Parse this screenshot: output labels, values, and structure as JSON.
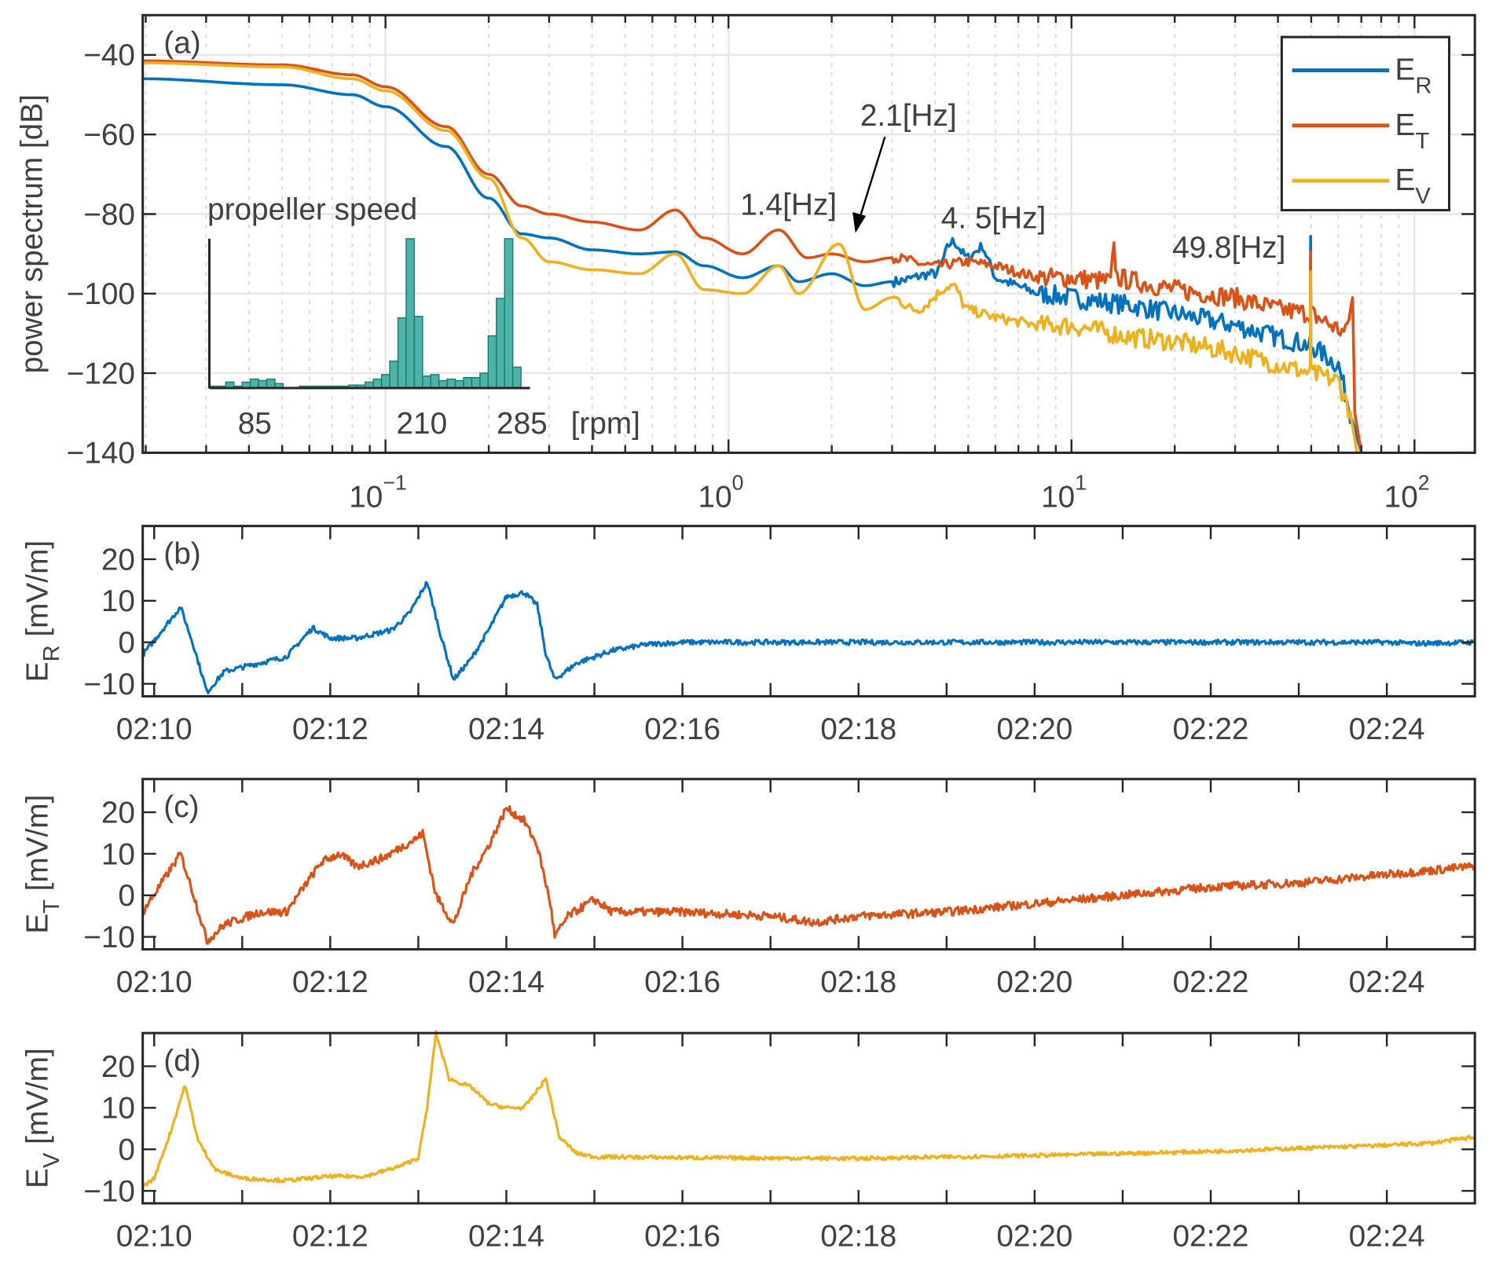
{
  "chart_data": [
    {
      "type": "line",
      "panel": "(a)",
      "xscale": "log",
      "xlim": [
        0.0196,
        150
      ],
      "ylim": [
        -140,
        -30
      ],
      "ylabel": "power spectrum [dB]",
      "grid": true,
      "xticks": [
        {
          "value": 0.1,
          "base": "10",
          "exp": "−1"
        },
        {
          "value": 1,
          "base": "10",
          "exp": "0"
        },
        {
          "value": 10,
          "base": "10",
          "exp": "1"
        },
        {
          "value": 100,
          "base": "10",
          "exp": "2"
        }
      ],
      "yticks": [
        {
          "value": -40,
          "label": "−40"
        },
        {
          "value": -60,
          "label": "−60"
        },
        {
          "value": -80,
          "label": "−80"
        },
        {
          "value": -100,
          "label": "−100"
        },
        {
          "value": -120,
          "label": "−120"
        },
        {
          "value": -140,
          "label": "−140"
        }
      ],
      "legend": {
        "placement": "top-right",
        "entries": [
          {
            "main": "E",
            "sub": "R",
            "color": "#0072BD"
          },
          {
            "main": "E",
            "sub": "T",
            "color": "#D95319"
          },
          {
            "main": "E",
            "sub": "V",
            "color": "#EDB120"
          }
        ]
      },
      "series": [
        {
          "name": "E_R",
          "color": "#0072BD",
          "points": [
            [
              0.0196,
              -46
            ],
            [
              0.05,
              -47.5
            ],
            [
              0.08,
              -50
            ],
            [
              0.1,
              -53
            ],
            [
              0.15,
              -63
            ],
            [
              0.2,
              -76
            ],
            [
              0.25,
              -85
            ],
            [
              0.3,
              -86
            ],
            [
              0.4,
              -89
            ],
            [
              0.55,
              -90
            ],
            [
              0.7,
              -89.5
            ],
            [
              0.85,
              -93
            ],
            [
              1.1,
              -96
            ],
            [
              1.4,
              -93
            ],
            [
              1.6,
              -97
            ],
            [
              2,
              -95
            ],
            [
              2.5,
              -98
            ],
            [
              3,
              -97
            ],
            [
              4,
              -95
            ],
            [
              4.5,
              -87
            ],
            [
              5,
              -91
            ],
            [
              5.5,
              -88
            ],
            [
              6,
              -96
            ],
            [
              8,
              -100
            ],
            [
              10,
              -101
            ],
            [
              15,
              -103
            ],
            [
              20,
              -105
            ],
            [
              30,
              -108
            ],
            [
              40,
              -111
            ],
            [
              49.7,
              -113
            ],
            [
              49.8,
              -86.5
            ],
            [
              49.9,
              -113
            ],
            [
              60,
              -118
            ],
            [
              65,
              -130
            ],
            [
              70,
              -140
            ]
          ]
        },
        {
          "name": "E_T",
          "color": "#D95319",
          "points": [
            [
              0.0196,
              -41.5
            ],
            [
              0.05,
              -42.5
            ],
            [
              0.08,
              -45
            ],
            [
              0.1,
              -48
            ],
            [
              0.15,
              -58
            ],
            [
              0.2,
              -70
            ],
            [
              0.25,
              -78
            ],
            [
              0.3,
              -80
            ],
            [
              0.4,
              -82
            ],
            [
              0.55,
              -84
            ],
            [
              0.7,
              -79
            ],
            [
              0.85,
              -86
            ],
            [
              1.1,
              -90
            ],
            [
              1.4,
              -84
            ],
            [
              1.7,
              -91
            ],
            [
              2,
              -90
            ],
            [
              2.5,
              -92
            ],
            [
              3,
              -91
            ],
            [
              4,
              -93
            ],
            [
              5,
              -92
            ],
            [
              6,
              -93
            ],
            [
              8,
              -96
            ],
            [
              10,
              -96
            ],
            [
              13,
              -97
            ],
            [
              13.3,
              -89
            ],
            [
              13.6,
              -96
            ],
            [
              20,
              -99
            ],
            [
              30,
              -101
            ],
            [
              40,
              -104
            ],
            [
              49.7,
              -105
            ],
            [
              49.8,
              -91
            ],
            [
              49.9,
              -105
            ],
            [
              63,
              -110
            ],
            [
              66,
              -101
            ],
            [
              67,
              -130
            ],
            [
              70,
              -140
            ]
          ]
        },
        {
          "name": "E_V",
          "color": "#EDB120",
          "points": [
            [
              0.0196,
              -42
            ],
            [
              0.05,
              -43
            ],
            [
              0.08,
              -46
            ],
            [
              0.1,
              -49
            ],
            [
              0.15,
              -59
            ],
            [
              0.2,
              -71
            ],
            [
              0.25,
              -86
            ],
            [
              0.3,
              -92
            ],
            [
              0.4,
              -94
            ],
            [
              0.55,
              -95
            ],
            [
              0.7,
              -90
            ],
            [
              0.85,
              -99
            ],
            [
              1.1,
              -100
            ],
            [
              1.4,
              -93
            ],
            [
              1.6,
              -100
            ],
            [
              2.1,
              -87.5
            ],
            [
              2.5,
              -104
            ],
            [
              3,
              -101
            ],
            [
              3.5,
              -104
            ],
            [
              4.5,
              -98
            ],
            [
              5,
              -104
            ],
            [
              6,
              -106
            ],
            [
              8,
              -108
            ],
            [
              10,
              -108
            ],
            [
              15,
              -111
            ],
            [
              20,
              -112
            ],
            [
              30,
              -115
            ],
            [
              45,
              -119
            ],
            [
              49.7,
              -120
            ],
            [
              49.8,
              -94
            ],
            [
              49.9,
              -120
            ],
            [
              60,
              -122
            ],
            [
              65,
              -130
            ],
            [
              68,
              -140
            ]
          ]
        }
      ],
      "annotations": {
        "panel_label": "(a)",
        "peak_1": "1.4[Hz]",
        "peak_2": "2.1[Hz]",
        "peak_3": "4. 5[Hz]",
        "peak_4": "49.8[Hz]"
      },
      "inset": {
        "type": "bar",
        "title": "propeller speed",
        "xlim": [
          51,
          291
        ],
        "xticks": [
          {
            "value": 85,
            "label": "85"
          },
          {
            "value": 210,
            "label": "210"
          },
          {
            "value": 285,
            "label": "285"
          }
        ],
        "xunit": "[rpm]",
        "color": "#4DB3A8",
        "values": [
          1,
          1,
          4,
          1,
          4,
          6,
          5,
          6,
          3,
          0,
          0,
          1,
          1,
          1,
          1,
          1,
          1,
          2,
          2,
          4,
          6,
          9,
          18,
          47,
          100,
          48,
          8,
          9,
          5,
          6,
          5,
          7,
          7,
          10,
          35,
          60,
          100,
          14,
          0
        ]
      }
    },
    {
      "type": "line",
      "panel": "(b)",
      "color": "#0072BD",
      "ylabel": {
        "main": "E",
        "sub": "R",
        "unit": "[mV/m]"
      },
      "xlim": [
        9.87,
        25
      ],
      "ylim": [
        -13,
        28
      ],
      "yticks": [
        {
          "value": 20,
          "label": "20"
        },
        {
          "value": 10,
          "label": "10"
        },
        {
          "value": 0,
          "label": "0"
        },
        {
          "value": -10,
          "label": "−10"
        }
      ],
      "xticks": [
        {
          "value": 10,
          "label": "02:10"
        },
        {
          "value": 12,
          "label": "02:12"
        },
        {
          "value": 14,
          "label": "02:14"
        },
        {
          "value": 16,
          "label": "02:16"
        },
        {
          "value": 18,
          "label": "02:18"
        },
        {
          "value": 20,
          "label": "02:20"
        },
        {
          "value": 22,
          "label": "02:22"
        },
        {
          "value": 24,
          "label": "02:24"
        }
      ],
      "points": [
        [
          9.87,
          -3
        ],
        [
          10.3,
          8.5
        ],
        [
          10.45,
          -1
        ],
        [
          10.6,
          -12
        ],
        [
          10.8,
          -7
        ],
        [
          11.2,
          -5
        ],
        [
          11.5,
          -3.5
        ],
        [
          11.8,
          3.5
        ],
        [
          12.0,
          1
        ],
        [
          12.3,
          1
        ],
        [
          12.7,
          3
        ],
        [
          12.9,
          7
        ],
        [
          13.1,
          14.5
        ],
        [
          13.25,
          2
        ],
        [
          13.4,
          -9
        ],
        [
          13.6,
          -4
        ],
        [
          13.8,
          3
        ],
        [
          14.0,
          11
        ],
        [
          14.2,
          12
        ],
        [
          14.35,
          9
        ],
        [
          14.45,
          -3
        ],
        [
          14.55,
          -9
        ],
        [
          14.8,
          -5
        ],
        [
          15.2,
          -2
        ],
        [
          15.6,
          -0.5
        ],
        [
          16,
          0
        ],
        [
          24,
          0
        ],
        [
          24.3,
          -0.3
        ],
        [
          25,
          0
        ]
      ]
    },
    {
      "type": "line",
      "panel": "(c)",
      "color": "#D95319",
      "ylabel": {
        "main": "E",
        "sub": "T",
        "unit": "[mV/m]"
      },
      "xlim": [
        9.87,
        25
      ],
      "ylim": [
        -13,
        28
      ],
      "yticks": [
        {
          "value": 20,
          "label": "20"
        },
        {
          "value": 10,
          "label": "10"
        },
        {
          "value": 0,
          "label": "0"
        },
        {
          "value": -10,
          "label": "−10"
        }
      ],
      "xticks": [
        {
          "value": 10,
          "label": "02:10"
        },
        {
          "value": 12,
          "label": "02:12"
        },
        {
          "value": 14,
          "label": "02:14"
        },
        {
          "value": 16,
          "label": "02:16"
        },
        {
          "value": 18,
          "label": "02:18"
        },
        {
          "value": 20,
          "label": "02:20"
        },
        {
          "value": 22,
          "label": "02:22"
        },
        {
          "value": 24,
          "label": "02:24"
        }
      ],
      "points": [
        [
          9.87,
          -4
        ],
        [
          10.3,
          10
        ],
        [
          10.45,
          0
        ],
        [
          10.6,
          -11
        ],
        [
          10.8,
          -7
        ],
        [
          11.2,
          -4
        ],
        [
          11.5,
          -4
        ],
        [
          11.9,
          8
        ],
        [
          12.1,
          10
        ],
        [
          12.3,
          7
        ],
        [
          12.6,
          9
        ],
        [
          13.0,
          14
        ],
        [
          13.05,
          15
        ],
        [
          13.2,
          0
        ],
        [
          13.4,
          -7
        ],
        [
          13.6,
          5
        ],
        [
          13.8,
          12
        ],
        [
          14.0,
          21
        ],
        [
          14.2,
          18
        ],
        [
          14.35,
          12
        ],
        [
          14.5,
          -2
        ],
        [
          14.55,
          -10
        ],
        [
          14.7,
          -5
        ],
        [
          15.0,
          -1
        ],
        [
          15.2,
          -4
        ],
        [
          16,
          -4
        ],
        [
          17,
          -5
        ],
        [
          17.5,
          -6.5
        ],
        [
          18,
          -5
        ],
        [
          19,
          -4
        ],
        [
          20,
          -2
        ],
        [
          21,
          0
        ],
        [
          22,
          2
        ],
        [
          23,
          3
        ],
        [
          24,
          5
        ],
        [
          25,
          7
        ]
      ]
    },
    {
      "type": "line",
      "panel": "(d)",
      "color": "#EDB120",
      "ylabel": {
        "main": "E",
        "sub": "V",
        "unit": "[mV/m]"
      },
      "xlim": [
        9.87,
        25
      ],
      "ylim": [
        -13,
        28
      ],
      "yticks": [
        {
          "value": 20,
          "label": "20"
        },
        {
          "value": 10,
          "label": "10"
        },
        {
          "value": 0,
          "label": "0"
        },
        {
          "value": -10,
          "label": "−10"
        }
      ],
      "xticks": [
        {
          "value": 10,
          "label": "02:10"
        },
        {
          "value": 12,
          "label": "02:12"
        },
        {
          "value": 14,
          "label": "02:14"
        },
        {
          "value": 16,
          "label": "02:16"
        },
        {
          "value": 18,
          "label": "02:18"
        },
        {
          "value": 20,
          "label": "02:20"
        },
        {
          "value": 22,
          "label": "02:22"
        },
        {
          "value": 24,
          "label": "02:24"
        }
      ],
      "points": [
        [
          9.87,
          -9
        ],
        [
          10.0,
          -7
        ],
        [
          10.2,
          5
        ],
        [
          10.35,
          15.5
        ],
        [
          10.5,
          2
        ],
        [
          10.7,
          -5
        ],
        [
          11,
          -7
        ],
        [
          11.5,
          -7.5
        ],
        [
          12,
          -6.5
        ],
        [
          12.4,
          -6.5
        ],
        [
          12.8,
          -4
        ],
        [
          13.0,
          -2
        ],
        [
          13.1,
          10
        ],
        [
          13.2,
          28
        ],
        [
          13.35,
          17
        ],
        [
          13.6,
          15
        ],
        [
          13.8,
          11
        ],
        [
          14.0,
          10
        ],
        [
          14.2,
          10
        ],
        [
          14.45,
          17
        ],
        [
          14.6,
          3
        ],
        [
          14.8,
          -1
        ],
        [
          15,
          -1.8
        ],
        [
          16,
          -2
        ],
        [
          18,
          -2.2
        ],
        [
          20,
          -1.5
        ],
        [
          22,
          -0.5
        ],
        [
          24,
          1
        ],
        [
          24.5,
          1.5
        ],
        [
          25,
          3
        ]
      ]
    }
  ]
}
